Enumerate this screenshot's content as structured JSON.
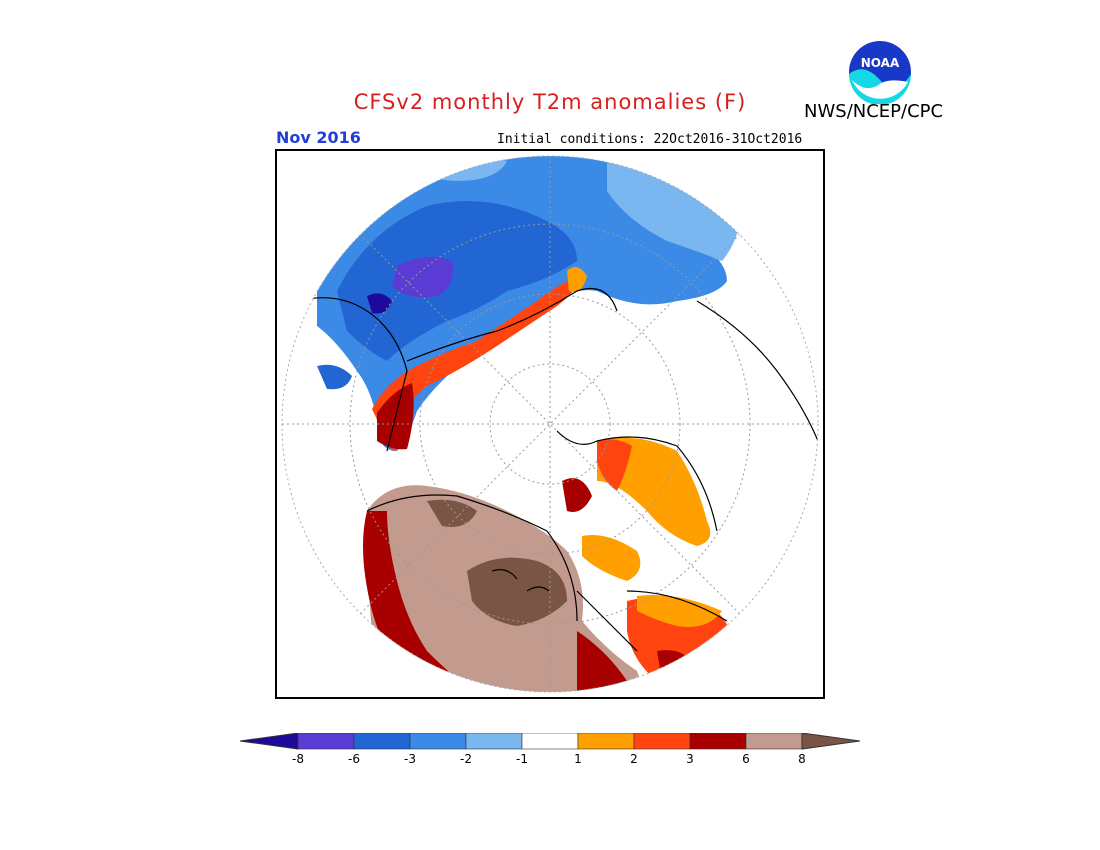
{
  "title": "CFSv2 monthly T2m anomalies (F)",
  "agency": "NWS/NCEP/CPC",
  "logo_text": "NOAA",
  "month_label": "Nov 2016",
  "initial_conditions": "Initial conditions: 22Oct2016-31Oct2016",
  "colors": {
    "title": "#d81e1e",
    "month": "#1f3fd8"
  },
  "legend": {
    "bins": [
      {
        "color": "#1e0a9a"
      },
      {
        "color": "#5a3cd4"
      },
      {
        "color": "#2266d4"
      },
      {
        "color": "#3a8ae6"
      },
      {
        "color": "#7ab6f0"
      },
      {
        "color": "#ffffff"
      },
      {
        "color": "#ffa000"
      },
      {
        "color": "#ff4410"
      },
      {
        "color": "#a80000"
      },
      {
        "color": "#c39a8e"
      },
      {
        "color": "#7a5444"
      }
    ],
    "ticks": [
      "-8",
      "-6",
      "-3",
      "-2",
      "-1",
      "1",
      "2",
      "3",
      "6",
      "8"
    ]
  }
}
